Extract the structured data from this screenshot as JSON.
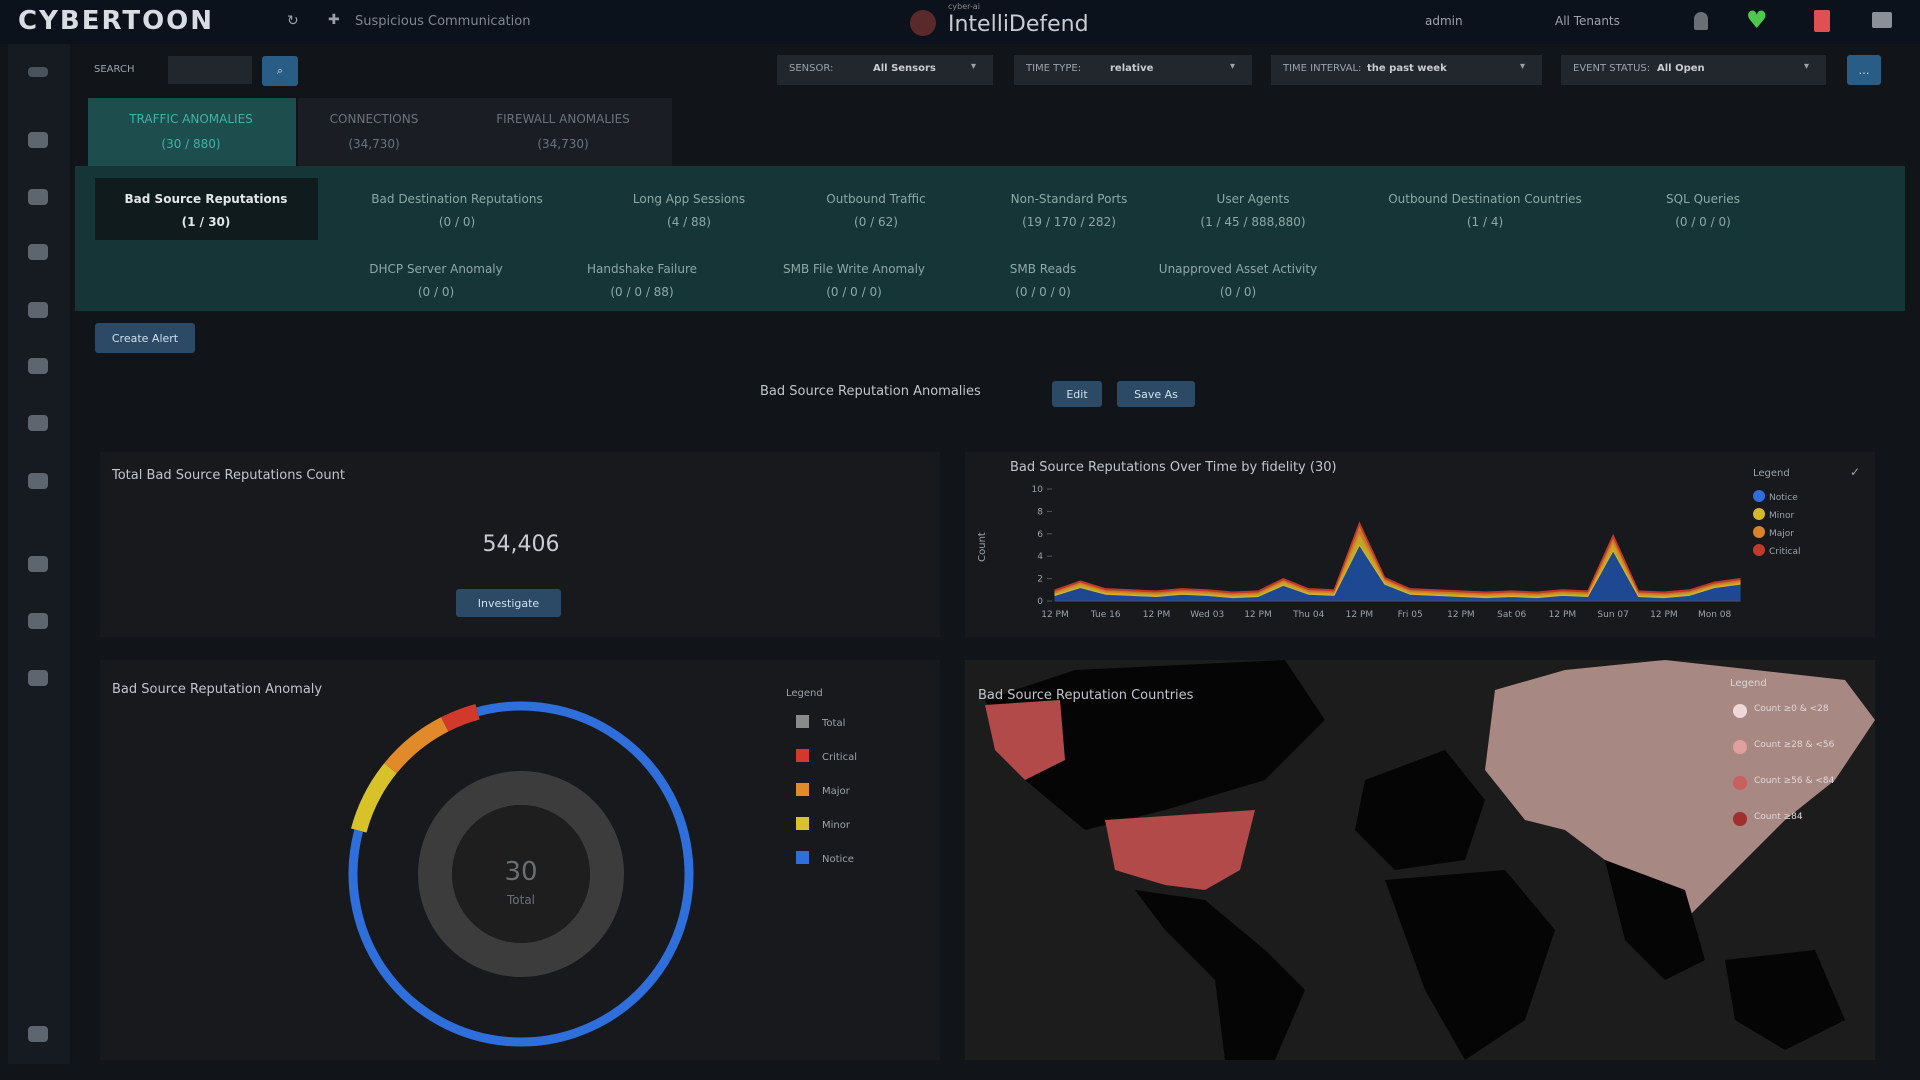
{
  "header": {
    "logo": "CYBERTOON",
    "breadcrumb": "Suspicious Communication",
    "product_tag": "cyber-ai",
    "product": "IntelliDefend",
    "user": "admin",
    "tenant": "All Tenants"
  },
  "toolbar": {
    "search_label": "SEARCH",
    "filters": [
      {
        "label": "SENSOR:",
        "value": "All Sensors"
      },
      {
        "label": "TIME TYPE:",
        "value": "relative"
      },
      {
        "label": "TIME INTERVAL:",
        "value": "the past week"
      },
      {
        "label": "EVENT STATUS:",
        "value": "All Open"
      }
    ]
  },
  "tabs": [
    {
      "label": "TRAFFIC ANOMALIES",
      "count": "(30 / 880)"
    },
    {
      "label": "CONNECTIONS",
      "count": "(34,730)"
    },
    {
      "label": "FIREWALL ANOMALIES",
      "count": "(34,730)"
    }
  ],
  "subtabs": [
    {
      "label": "Bad Source Reputations",
      "count": "(1 / 30)"
    },
    {
      "label": "Bad Destination Reputations",
      "count": "(0 / 0)"
    },
    {
      "label": "Long App Sessions",
      "count": "(4 / 88)"
    },
    {
      "label": "Outbound Traffic",
      "count": "(0 / 62)"
    },
    {
      "label": "Non-Standard Ports",
      "count": "(19 / 170 / 282)"
    },
    {
      "label": "User Agents",
      "count": "(1 / 45 / 888,880)"
    },
    {
      "label": "Outbound Destination Countries",
      "count": "(1 / 4)"
    },
    {
      "label": "SQL Queries",
      "count": "(0 / 0 / 0)"
    },
    {
      "label": "DHCP Server Anomaly",
      "count": "(0 / 0)"
    },
    {
      "label": "Handshake Failure",
      "count": "(0 / 0 / 88)"
    },
    {
      "label": "SMB File Write Anomaly",
      "count": "(0 / 0 / 0)"
    },
    {
      "label": "SMB Reads",
      "count": "(0 / 0 / 0)"
    },
    {
      "label": "Unapproved Asset Activity",
      "count": "(0 / 0)"
    }
  ],
  "actions": {
    "create_alert": "Create Alert",
    "view_title": "Bad Source Reputation Anomalies",
    "edit": "Edit",
    "save_as": "Save As"
  },
  "total_panel": {
    "title": "Total Bad Source Reputations Count",
    "value": "54,406",
    "button": "Investigate"
  },
  "timeline": {
    "type": "area",
    "title": "Bad Source Reputations Over Time by fidelity (30)",
    "y_label": "Count",
    "legend_title": "Legend",
    "stacked": true,
    "categories": [
      "12 PM",
      null,
      "Tue 16",
      null,
      "12 PM",
      null,
      "Wed 03",
      null,
      "12 PM",
      null,
      "Thu 04",
      null,
      "12 PM",
      null,
      "Fri 05",
      null,
      "12 PM",
      null,
      "Sat 06",
      null,
      "12 PM",
      null,
      "Sun 07",
      null,
      "12 PM",
      null,
      "Mon 08",
      null
    ],
    "series": [
      {
        "name": "Notice",
        "color": "#1f4e9e",
        "values": [
          0.5,
          1.2,
          0.6,
          0.5,
          0.4,
          0.6,
          0.5,
          0.3,
          0.4,
          1.4,
          0.6,
          0.5,
          5.0,
          1.5,
          0.6,
          0.5,
          0.4,
          0.3,
          0.4,
          0.3,
          0.5,
          0.4,
          4.5,
          0.4,
          0.3,
          0.5,
          1.2,
          1.5
        ]
      },
      {
        "name": "Minor",
        "color": "#d6b62a",
        "values": [
          0.2,
          0.3,
          0.2,
          0.2,
          0.2,
          0.2,
          0.2,
          0.2,
          0.2,
          0.3,
          0.2,
          0.2,
          1.0,
          0.3,
          0.2,
          0.2,
          0.2,
          0.2,
          0.2,
          0.2,
          0.2,
          0.2,
          0.7,
          0.2,
          0.2,
          0.2,
          0.2,
          0.2
        ]
      },
      {
        "name": "Major",
        "color": "#d9822b",
        "values": [
          0.2,
          0.2,
          0.2,
          0.2,
          0.2,
          0.2,
          0.2,
          0.2,
          0.2,
          0.2,
          0.2,
          0.2,
          0.8,
          0.2,
          0.2,
          0.2,
          0.2,
          0.2,
          0.2,
          0.2,
          0.2,
          0.2,
          0.5,
          0.2,
          0.2,
          0.2,
          0.2,
          0.2
        ]
      },
      {
        "name": "Critical",
        "color": "#c0392b",
        "values": [
          0.1,
          0.1,
          0.1,
          0.1,
          0.1,
          0.1,
          0.1,
          0.1,
          0.1,
          0.1,
          0.1,
          0.1,
          0.2,
          0.1,
          0.1,
          0.1,
          0.1,
          0.1,
          0.1,
          0.1,
          0.1,
          0.1,
          0.2,
          0.1,
          0.1,
          0.1,
          0.1,
          0.1
        ]
      }
    ],
    "ylim": [
      0,
      10
    ],
    "yticks": [
      0,
      2,
      4,
      6,
      8,
      10
    ]
  },
  "donut": {
    "type": "donut",
    "title": "Bad Source Reputation Anomaly",
    "legend_title": "Legend",
    "total": 30,
    "total_label": "Total",
    "total_color": "#8a8a8a",
    "categories": [
      "Critical",
      "Major",
      "Minor",
      "Notice"
    ],
    "values": [
      1,
      2,
      2,
      25
    ],
    "colors": [
      "#d13a2a",
      "#e08a2a",
      "#d8c22a",
      "#2f6fdc"
    ]
  },
  "map": {
    "title": "Bad Source Reputation Countries",
    "legend_title": "Legend",
    "legend": [
      "Count ≥0 & <28",
      "Count ≥28 & <56",
      "Count ≥56 & <84",
      "Count ≥84"
    ]
  }
}
